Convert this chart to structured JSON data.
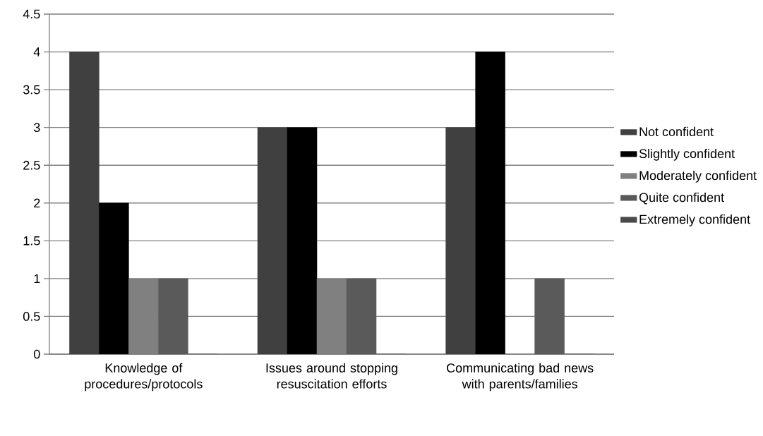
{
  "chart_data": {
    "type": "bar",
    "categories": [
      "Knowledge of procedures/protocols",
      "Issues around stopping resuscitation efforts",
      "Communicating bad news with parents/families"
    ],
    "series": [
      {
        "name": "Not confident",
        "color": "#404040",
        "values": [
          4,
          3,
          3
        ]
      },
      {
        "name": "Slightly confident",
        "color": "#000000",
        "values": [
          2,
          3,
          4
        ]
      },
      {
        "name": "Moderately confident",
        "color": "#808080",
        "values": [
          1,
          1,
          0
        ]
      },
      {
        "name": "Quite confident",
        "color": "#5a5a5a",
        "values": [
          1,
          1,
          1
        ]
      },
      {
        "name": "Extremely confident",
        "color": "#4a4a4a",
        "values": [
          0,
          0,
          0
        ]
      }
    ],
    "ylim": [
      0,
      4.5
    ],
    "yticks": [
      0,
      0.5,
      1,
      1.5,
      2,
      2.5,
      3,
      3.5,
      4,
      4.5
    ],
    "grid": "y",
    "legend": "right"
  }
}
